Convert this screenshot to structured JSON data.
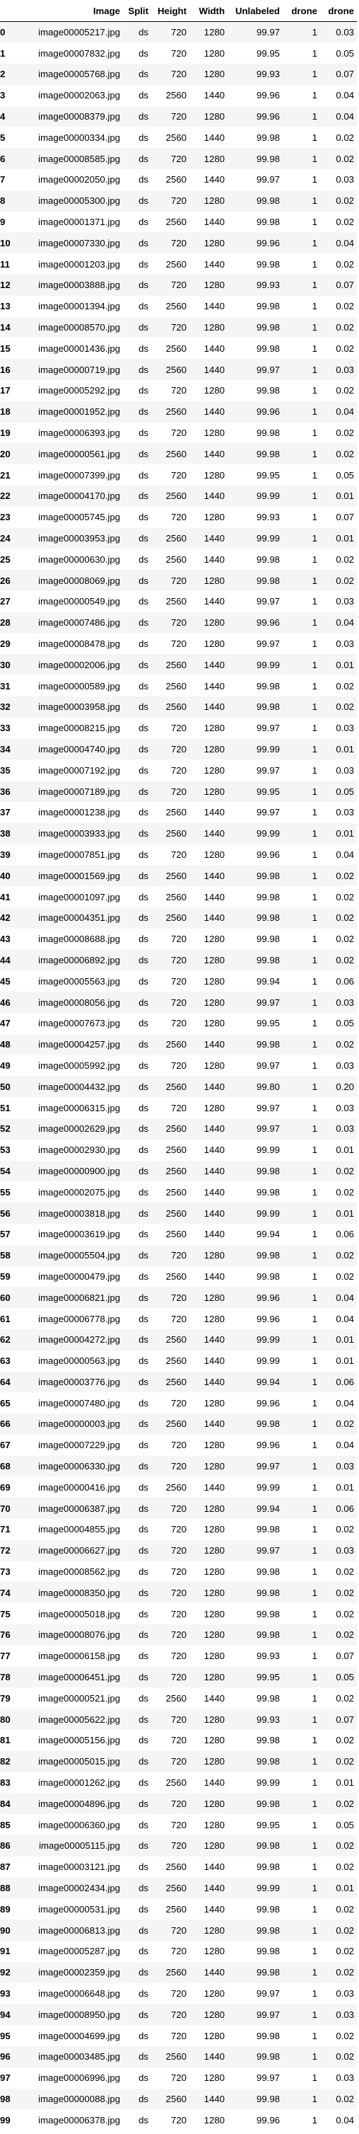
{
  "columns": [
    "",
    "Image",
    "Split",
    "Height",
    "Width",
    "Unlabeled",
    "drone",
    "drone"
  ],
  "rows": [
    [
      "0",
      "image00005217.jpg",
      "ds",
      "720",
      "1280",
      "99.97",
      "1",
      "0.03"
    ],
    [
      "1",
      "image00007832.jpg",
      "ds",
      "720",
      "1280",
      "99.95",
      "1",
      "0.05"
    ],
    [
      "2",
      "image00005768.jpg",
      "ds",
      "720",
      "1280",
      "99.93",
      "1",
      "0.07"
    ],
    [
      "3",
      "image00002063.jpg",
      "ds",
      "2560",
      "1440",
      "99.96",
      "1",
      "0.04"
    ],
    [
      "4",
      "image00008379.jpg",
      "ds",
      "720",
      "1280",
      "99.96",
      "1",
      "0.04"
    ],
    [
      "5",
      "image00000334.jpg",
      "ds",
      "2560",
      "1440",
      "99.98",
      "1",
      "0.02"
    ],
    [
      "6",
      "image00008585.jpg",
      "ds",
      "720",
      "1280",
      "99.98",
      "1",
      "0.02"
    ],
    [
      "7",
      "image00002050.jpg",
      "ds",
      "2560",
      "1440",
      "99.97",
      "1",
      "0.03"
    ],
    [
      "8",
      "image00005300.jpg",
      "ds",
      "720",
      "1280",
      "99.98",
      "1",
      "0.02"
    ],
    [
      "9",
      "image00001371.jpg",
      "ds",
      "2560",
      "1440",
      "99.98",
      "1",
      "0.02"
    ],
    [
      "10",
      "image00007330.jpg",
      "ds",
      "720",
      "1280",
      "99.96",
      "1",
      "0.04"
    ],
    [
      "11",
      "image00001203.jpg",
      "ds",
      "2560",
      "1440",
      "99.98",
      "1",
      "0.02"
    ],
    [
      "12",
      "image00003888.jpg",
      "ds",
      "720",
      "1280",
      "99.93",
      "1",
      "0.07"
    ],
    [
      "13",
      "image00001394.jpg",
      "ds",
      "2560",
      "1440",
      "99.98",
      "1",
      "0.02"
    ],
    [
      "14",
      "image00008570.jpg",
      "ds",
      "720",
      "1280",
      "99.98",
      "1",
      "0.02"
    ],
    [
      "15",
      "image00001436.jpg",
      "ds",
      "2560",
      "1440",
      "99.98",
      "1",
      "0.02"
    ],
    [
      "16",
      "image00000719.jpg",
      "ds",
      "2560",
      "1440",
      "99.97",
      "1",
      "0.03"
    ],
    [
      "17",
      "image00005292.jpg",
      "ds",
      "720",
      "1280",
      "99.98",
      "1",
      "0.02"
    ],
    [
      "18",
      "image00001952.jpg",
      "ds",
      "2560",
      "1440",
      "99.96",
      "1",
      "0.04"
    ],
    [
      "19",
      "image00006393.jpg",
      "ds",
      "720",
      "1280",
      "99.98",
      "1",
      "0.02"
    ],
    [
      "20",
      "image00000561.jpg",
      "ds",
      "2560",
      "1440",
      "99.98",
      "1",
      "0.02"
    ],
    [
      "21",
      "image00007399.jpg",
      "ds",
      "720",
      "1280",
      "99.95",
      "1",
      "0.05"
    ],
    [
      "22",
      "image00004170.jpg",
      "ds",
      "2560",
      "1440",
      "99.99",
      "1",
      "0.01"
    ],
    [
      "23",
      "image00005745.jpg",
      "ds",
      "720",
      "1280",
      "99.93",
      "1",
      "0.07"
    ],
    [
      "24",
      "image00003953.jpg",
      "ds",
      "2560",
      "1440",
      "99.99",
      "1",
      "0.01"
    ],
    [
      "25",
      "image00000630.jpg",
      "ds",
      "2560",
      "1440",
      "99.98",
      "1",
      "0.02"
    ],
    [
      "26",
      "image00008069.jpg",
      "ds",
      "720",
      "1280",
      "99.98",
      "1",
      "0.02"
    ],
    [
      "27",
      "image00000549.jpg",
      "ds",
      "2560",
      "1440",
      "99.97",
      "1",
      "0.03"
    ],
    [
      "28",
      "image00007486.jpg",
      "ds",
      "720",
      "1280",
      "99.96",
      "1",
      "0.04"
    ],
    [
      "29",
      "image00008478.jpg",
      "ds",
      "720",
      "1280",
      "99.97",
      "1",
      "0.03"
    ],
    [
      "30",
      "image00002006.jpg",
      "ds",
      "2560",
      "1440",
      "99.99",
      "1",
      "0.01"
    ],
    [
      "31",
      "image00000589.jpg",
      "ds",
      "2560",
      "1440",
      "99.98",
      "1",
      "0.02"
    ],
    [
      "32",
      "image00003958.jpg",
      "ds",
      "2560",
      "1440",
      "99.98",
      "1",
      "0.02"
    ],
    [
      "33",
      "image00008215.jpg",
      "ds",
      "720",
      "1280",
      "99.97",
      "1",
      "0.03"
    ],
    [
      "34",
      "image00004740.jpg",
      "ds",
      "720",
      "1280",
      "99.99",
      "1",
      "0.01"
    ],
    [
      "35",
      "image00007192.jpg",
      "ds",
      "720",
      "1280",
      "99.97",
      "1",
      "0.03"
    ],
    [
      "36",
      "image00007189.jpg",
      "ds",
      "720",
      "1280",
      "99.95",
      "1",
      "0.05"
    ],
    [
      "37",
      "image00001238.jpg",
      "ds",
      "2560",
      "1440",
      "99.97",
      "1",
      "0.03"
    ],
    [
      "38",
      "image00003933.jpg",
      "ds",
      "2560",
      "1440",
      "99.99",
      "1",
      "0.01"
    ],
    [
      "39",
      "image00007851.jpg",
      "ds",
      "720",
      "1280",
      "99.96",
      "1",
      "0.04"
    ],
    [
      "40",
      "image00001569.jpg",
      "ds",
      "2560",
      "1440",
      "99.98",
      "1",
      "0.02"
    ],
    [
      "41",
      "image00001097.jpg",
      "ds",
      "2560",
      "1440",
      "99.98",
      "1",
      "0.02"
    ],
    [
      "42",
      "image00004351.jpg",
      "ds",
      "2560",
      "1440",
      "99.98",
      "1",
      "0.02"
    ],
    [
      "43",
      "image00008688.jpg",
      "ds",
      "720",
      "1280",
      "99.98",
      "1",
      "0.02"
    ],
    [
      "44",
      "image00006892.jpg",
      "ds",
      "720",
      "1280",
      "99.98",
      "1",
      "0.02"
    ],
    [
      "45",
      "image00005563.jpg",
      "ds",
      "720",
      "1280",
      "99.94",
      "1",
      "0.06"
    ],
    [
      "46",
      "image00008056.jpg",
      "ds",
      "720",
      "1280",
      "99.97",
      "1",
      "0.03"
    ],
    [
      "47",
      "image00007673.jpg",
      "ds",
      "720",
      "1280",
      "99.95",
      "1",
      "0.05"
    ],
    [
      "48",
      "image00004257.jpg",
      "ds",
      "2560",
      "1440",
      "99.98",
      "1",
      "0.02"
    ],
    [
      "49",
      "image00005992.jpg",
      "ds",
      "720",
      "1280",
      "99.97",
      "1",
      "0.03"
    ],
    [
      "50",
      "image00004432.jpg",
      "ds",
      "2560",
      "1440",
      "99.80",
      "1",
      "0.20"
    ],
    [
      "51",
      "image00006315.jpg",
      "ds",
      "720",
      "1280",
      "99.97",
      "1",
      "0.03"
    ],
    [
      "52",
      "image00002629.jpg",
      "ds",
      "2560",
      "1440",
      "99.97",
      "1",
      "0.03"
    ],
    [
      "53",
      "image00002930.jpg",
      "ds",
      "2560",
      "1440",
      "99.99",
      "1",
      "0.01"
    ],
    [
      "54",
      "image00000900.jpg",
      "ds",
      "2560",
      "1440",
      "99.98",
      "1",
      "0.02"
    ],
    [
      "55",
      "image00002075.jpg",
      "ds",
      "2560",
      "1440",
      "99.98",
      "1",
      "0.02"
    ],
    [
      "56",
      "image00003818.jpg",
      "ds",
      "2560",
      "1440",
      "99.99",
      "1",
      "0.01"
    ],
    [
      "57",
      "image00003619.jpg",
      "ds",
      "2560",
      "1440",
      "99.94",
      "1",
      "0.06"
    ],
    [
      "58",
      "image00005504.jpg",
      "ds",
      "720",
      "1280",
      "99.98",
      "1",
      "0.02"
    ],
    [
      "59",
      "image00000479.jpg",
      "ds",
      "2560",
      "1440",
      "99.98",
      "1",
      "0.02"
    ],
    [
      "60",
      "image00006821.jpg",
      "ds",
      "720",
      "1280",
      "99.96",
      "1",
      "0.04"
    ],
    [
      "61",
      "image00006778.jpg",
      "ds",
      "720",
      "1280",
      "99.96",
      "1",
      "0.04"
    ],
    [
      "62",
      "image00004272.jpg",
      "ds",
      "2560",
      "1440",
      "99.99",
      "1",
      "0.01"
    ],
    [
      "63",
      "image00000563.jpg",
      "ds",
      "2560",
      "1440",
      "99.99",
      "1",
      "0.01"
    ],
    [
      "64",
      "image00003776.jpg",
      "ds",
      "2560",
      "1440",
      "99.94",
      "1",
      "0.06"
    ],
    [
      "65",
      "image00007480.jpg",
      "ds",
      "720",
      "1280",
      "99.96",
      "1",
      "0.04"
    ],
    [
      "66",
      "image00000003.jpg",
      "ds",
      "2560",
      "1440",
      "99.98",
      "1",
      "0.02"
    ],
    [
      "67",
      "image00007229.jpg",
      "ds",
      "720",
      "1280",
      "99.96",
      "1",
      "0.04"
    ],
    [
      "68",
      "image00006330.jpg",
      "ds",
      "720",
      "1280",
      "99.97",
      "1",
      "0.03"
    ],
    [
      "69",
      "image00000416.jpg",
      "ds",
      "2560",
      "1440",
      "99.99",
      "1",
      "0.01"
    ],
    [
      "70",
      "image00006387.jpg",
      "ds",
      "720",
      "1280",
      "99.94",
      "1",
      "0.06"
    ],
    [
      "71",
      "image00004855.jpg",
      "ds",
      "720",
      "1280",
      "99.98",
      "1",
      "0.02"
    ],
    [
      "72",
      "image00006627.jpg",
      "ds",
      "720",
      "1280",
      "99.97",
      "1",
      "0.03"
    ],
    [
      "73",
      "image00008562.jpg",
      "ds",
      "720",
      "1280",
      "99.98",
      "1",
      "0.02"
    ],
    [
      "74",
      "image00008350.jpg",
      "ds",
      "720",
      "1280",
      "99.98",
      "1",
      "0.02"
    ],
    [
      "75",
      "image00005018.jpg",
      "ds",
      "720",
      "1280",
      "99.98",
      "1",
      "0.02"
    ],
    [
      "76",
      "image00008076.jpg",
      "ds",
      "720",
      "1280",
      "99.98",
      "1",
      "0.02"
    ],
    [
      "77",
      "image00006158.jpg",
      "ds",
      "720",
      "1280",
      "99.93",
      "1",
      "0.07"
    ],
    [
      "78",
      "image00006451.jpg",
      "ds",
      "720",
      "1280",
      "99.95",
      "1",
      "0.05"
    ],
    [
      "79",
      "image00000521.jpg",
      "ds",
      "2560",
      "1440",
      "99.98",
      "1",
      "0.02"
    ],
    [
      "80",
      "image00005622.jpg",
      "ds",
      "720",
      "1280",
      "99.93",
      "1",
      "0.07"
    ],
    [
      "81",
      "image00005156.jpg",
      "ds",
      "720",
      "1280",
      "99.98",
      "1",
      "0.02"
    ],
    [
      "82",
      "image00005015.jpg",
      "ds",
      "720",
      "1280",
      "99.98",
      "1",
      "0.02"
    ],
    [
      "83",
      "image00001262.jpg",
      "ds",
      "2560",
      "1440",
      "99.99",
      "1",
      "0.01"
    ],
    [
      "84",
      "image00004896.jpg",
      "ds",
      "720",
      "1280",
      "99.98",
      "1",
      "0.02"
    ],
    [
      "85",
      "image00006360.jpg",
      "ds",
      "720",
      "1280",
      "99.95",
      "1",
      "0.05"
    ],
    [
      "86",
      "image00005115.jpg",
      "ds",
      "720",
      "1280",
      "99.98",
      "1",
      "0.02"
    ],
    [
      "87",
      "image00003121.jpg",
      "ds",
      "2560",
      "1440",
      "99.98",
      "1",
      "0.02"
    ],
    [
      "88",
      "image00002434.jpg",
      "ds",
      "2560",
      "1440",
      "99.99",
      "1",
      "0.01"
    ],
    [
      "89",
      "image00000531.jpg",
      "ds",
      "2560",
      "1440",
      "99.98",
      "1",
      "0.02"
    ],
    [
      "90",
      "image00006813.jpg",
      "ds",
      "720",
      "1280",
      "99.98",
      "1",
      "0.02"
    ],
    [
      "91",
      "image00005287.jpg",
      "ds",
      "720",
      "1280",
      "99.98",
      "1",
      "0.02"
    ],
    [
      "92",
      "image00002359.jpg",
      "ds",
      "2560",
      "1440",
      "99.98",
      "1",
      "0.02"
    ],
    [
      "93",
      "image00006648.jpg",
      "ds",
      "720",
      "1280",
      "99.97",
      "1",
      "0.03"
    ],
    [
      "94",
      "image00008950.jpg",
      "ds",
      "720",
      "1280",
      "99.97",
      "1",
      "0.03"
    ],
    [
      "95",
      "image00004699.jpg",
      "ds",
      "720",
      "1280",
      "99.98",
      "1",
      "0.02"
    ],
    [
      "96",
      "image00003485.jpg",
      "ds",
      "2560",
      "1440",
      "99.98",
      "1",
      "0.02"
    ],
    [
      "97",
      "image00006996.jpg",
      "ds",
      "720",
      "1280",
      "99.97",
      "1",
      "0.03"
    ],
    [
      "98",
      "image00000088.jpg",
      "ds",
      "2560",
      "1440",
      "99.98",
      "1",
      "0.02"
    ],
    [
      "99",
      "image00006378.jpg",
      "ds",
      "720",
      "1280",
      "99.96",
      "1",
      "0.04"
    ]
  ]
}
